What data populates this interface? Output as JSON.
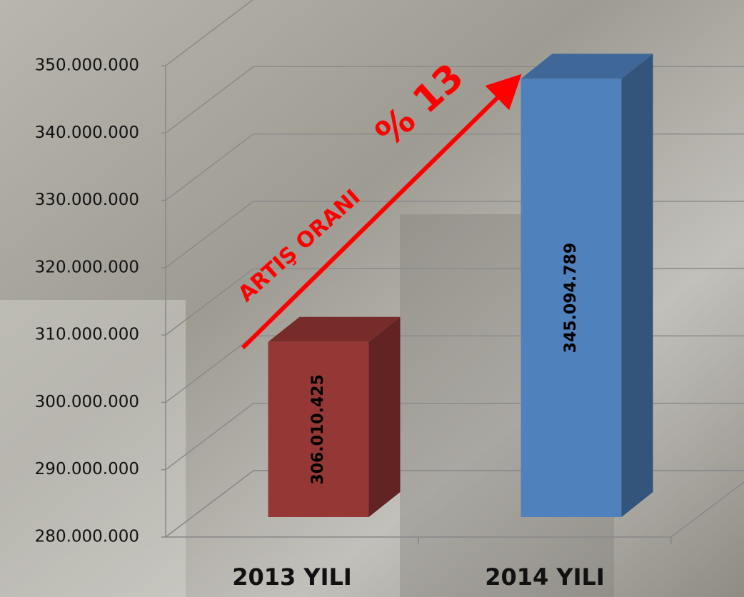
{
  "chart_data": {
    "type": "bar3d",
    "categories": [
      "2013 YILI",
      "2014 YILI"
    ],
    "values": [
      306010425,
      345094789
    ],
    "value_labels": [
      "306.010.425",
      "345.094.789"
    ],
    "colors": [
      "#953735",
      "#4f81bd"
    ],
    "ylim": [
      280000000,
      350000000
    ],
    "yticks": [
      {
        "value": 280000000,
        "label": "280.000.000"
      },
      {
        "value": 290000000,
        "label": "290.000.000"
      },
      {
        "value": 300000000,
        "label": "300.000.000"
      },
      {
        "value": 310000000,
        "label": "310.000.000"
      },
      {
        "value": 320000000,
        "label": "320.000.000"
      },
      {
        "value": 330000000,
        "label": "330.000.000"
      },
      {
        "value": 340000000,
        "label": "340.000.000"
      },
      {
        "value": 350000000,
        "label": "350.000.000"
      }
    ],
    "grid": true,
    "annotations": [
      "ARTIŞ ORANI",
      "% 13"
    ]
  }
}
